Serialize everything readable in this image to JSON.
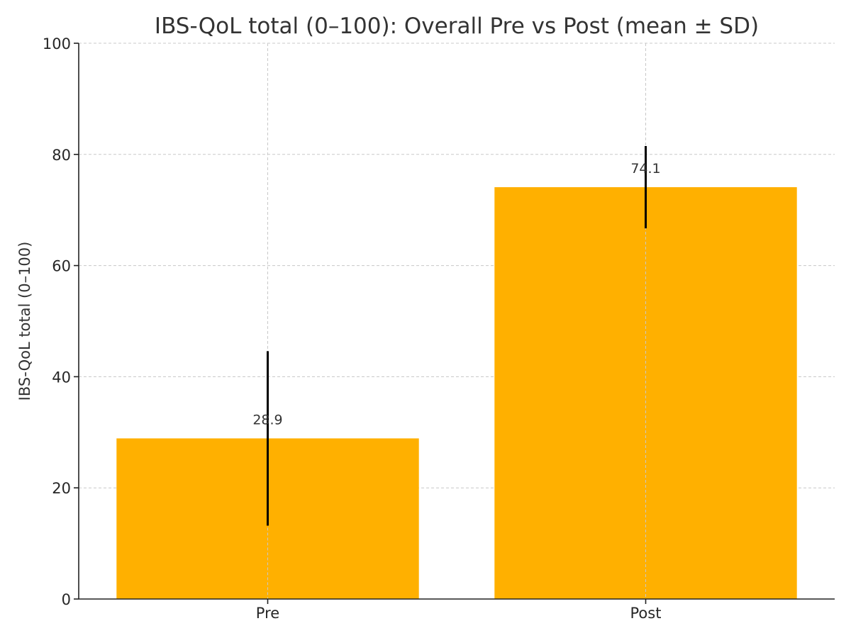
{
  "chart_data": {
    "type": "bar",
    "title": "IBS-QoL total (0–100): Overall Pre vs Post (mean ± SD)",
    "xlabel": "",
    "ylabel": "IBS-QoL total (0–100)",
    "categories": [
      "Pre",
      "Post"
    ],
    "values": [
      28.9,
      74.1
    ],
    "error_sd": [
      15.7,
      7.4
    ],
    "data_labels": [
      "28.9",
      "74.1"
    ],
    "ylim": [
      0,
      100
    ],
    "yticks": [
      0,
      20,
      40,
      60,
      80,
      100
    ],
    "ytick_labels": [
      "0",
      "20",
      "40",
      "60",
      "80",
      "100"
    ],
    "grid": true,
    "bar_color": "#FFB000",
    "error_bar_color": "#000000"
  }
}
